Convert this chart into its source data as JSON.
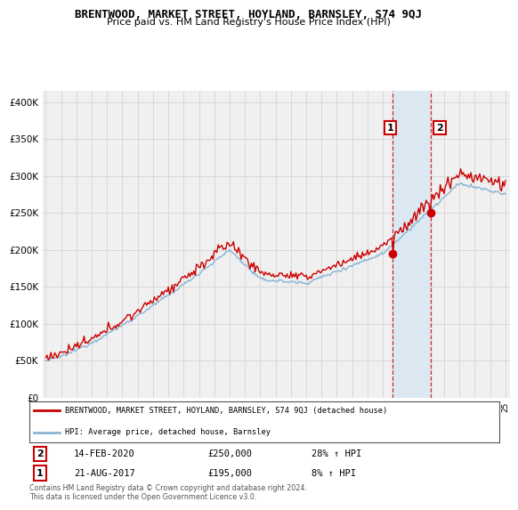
{
  "title": "BRENTWOOD, MARKET STREET, HOYLAND, BARNSLEY, S74 9QJ",
  "subtitle": "Price paid vs. HM Land Registry's House Price Index (HPI)",
  "ylabel_ticks": [
    "£0",
    "£50K",
    "£100K",
    "£150K",
    "£200K",
    "£250K",
    "£300K",
    "£350K",
    "£400K"
  ],
  "ytick_values": [
    0,
    50000,
    100000,
    150000,
    200000,
    250000,
    300000,
    350000,
    400000
  ],
  "ylim": [
    0,
    415000
  ],
  "x_start_year": 1995,
  "x_end_year": 2025,
  "hpi_color": "#8ab4d4",
  "price_color": "#cc0000",
  "shade_color": "#d8e8f5",
  "marker1_date": 2017.64,
  "marker1_price": 195000,
  "marker1_label": "21-AUG-2017",
  "marker1_pct": "8%",
  "marker2_date": 2020.12,
  "marker2_price": 250000,
  "marker2_label": "14-FEB-2020",
  "marker2_pct": "28%",
  "legend_line1": "BRENTWOOD, MARKET STREET, HOYLAND, BARNSLEY, S74 9QJ (detached house)",
  "legend_line2": "HPI: Average price, detached house, Barnsley",
  "footer": "Contains HM Land Registry data © Crown copyright and database right 2024.\nThis data is licensed under the Open Government Licence v3.0.",
  "background_color": "#ffffff",
  "plot_bg_color": "#f0f0f0",
  "grid_color": "#d8d8d8"
}
